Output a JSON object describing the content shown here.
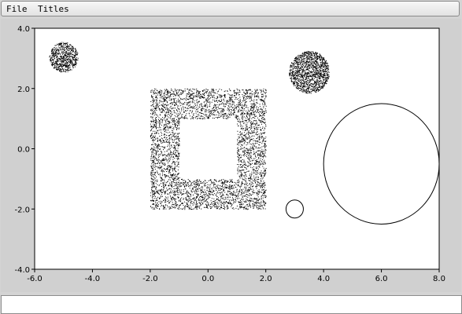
{
  "menubar": {
    "file_label": "File",
    "titles_label": "Titles"
  },
  "command_input": {
    "value": ""
  },
  "chart_data": {
    "type": "scatter",
    "title": "",
    "xlabel": "",
    "ylabel": "",
    "xlim": [
      -6.0,
      8.0
    ],
    "ylim": [
      -4.0,
      4.0
    ],
    "xticks": [
      "-6.0",
      "-4.0",
      "-2.0",
      "0.0",
      "2.0",
      "4.0",
      "6.0",
      "8.0"
    ],
    "yticks": [
      "4.0",
      "2.0",
      "0.0",
      "-2.0",
      "-4.0"
    ],
    "grid": false,
    "colors": {
      "points": "#000000",
      "background": "#ffffff",
      "panel": "#d0d0d0"
    },
    "shapes": [
      {
        "kind": "filled-disk",
        "cx": -5.0,
        "cy": 3.05,
        "r": 0.5,
        "style": "random-points"
      },
      {
        "kind": "filled-disk",
        "cx": 3.5,
        "cy": 2.55,
        "r": 0.7,
        "style": "random-points"
      },
      {
        "kind": "square-ring",
        "x0": -2.0,
        "x1": 2.0,
        "y0": -2.0,
        "y1": 2.0,
        "hole_x0": -1.0,
        "hole_x1": 1.0,
        "hole_y0": -1.0,
        "hole_y1": 1.0,
        "style": "random-points"
      },
      {
        "kind": "circle",
        "cx": 3.0,
        "cy": -2.0,
        "r": 0.3,
        "style": "outline"
      },
      {
        "kind": "circle",
        "cx": 6.0,
        "cy": -0.5,
        "r": 2.0,
        "style": "outline"
      }
    ]
  }
}
